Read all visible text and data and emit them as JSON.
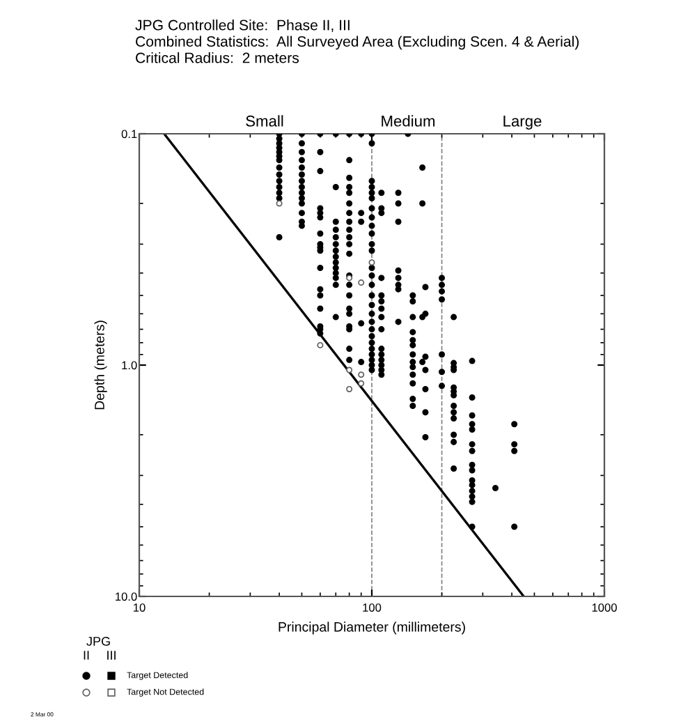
{
  "chart_data": {
    "type": "scatter",
    "title": "JPG Controlled Site:  Phase II, III\nCombined Statistics:  All Surveyed Area (Excluding Scen. 4 & Aerial)\nCritical Radius:  2 meters",
    "xlabel": "Principal Diameter (millimeters)",
    "ylabel": "Depth (meters)",
    "legend_title": "JPG",
    "annotations": [
      "II",
      "III",
      "2 Mar 00",
      "Small",
      "Medium",
      "Large"
    ],
    "log": "xy",
    "xlim": [
      10,
      1000
    ],
    "xticks": [
      10,
      100,
      1000
    ],
    "ylim": [
      10,
      0.1
    ],
    "yticks": [
      0.1,
      {
        "value": 1,
        "label": "1.0"
      },
      {
        "value": 10,
        "label": "10.0"
      }
    ],
    "grid": false,
    "legend": "bottom left",
    "marker": "circle",
    "ref_lines": [
      {
        "axis": "x",
        "value": 100,
        "color": "#808080",
        "line_style": "dashed"
      },
      {
        "axis": "x",
        "value": 200,
        "color": "#808080",
        "line_style": "dashed"
      }
    ],
    "series": [
      {
        "name": "Target Detected",
        "color": "#000000",
        "x": [
          40,
          40,
          40,
          40,
          40,
          40,
          40,
          40,
          40,
          40,
          40,
          40,
          40,
          40,
          50,
          50,
          50,
          50,
          50,
          50,
          50,
          50,
          50,
          50,
          50,
          50,
          50,
          50,
          60,
          60,
          60,
          60,
          60,
          60,
          60,
          60,
          60,
          60,
          60,
          60,
          60,
          60,
          60,
          60,
          60,
          70,
          70,
          70,
          70,
          70,
          70,
          70,
          70,
          70,
          70,
          70,
          70,
          70,
          70,
          80,
          80,
          80,
          80,
          80,
          80,
          80,
          80,
          80,
          80,
          80,
          80,
          80,
          80,
          80,
          80,
          80,
          80,
          80,
          80,
          80,
          90,
          90,
          90,
          90,
          90,
          100,
          100,
          100,
          100,
          100,
          100,
          100,
          100,
          100,
          100,
          100,
          100,
          100,
          100,
          100,
          100,
          100,
          100,
          100,
          100,
          100,
          100,
          100,
          100,
          100,
          100,
          100,
          110,
          110,
          110,
          110,
          110,
          110,
          110,
          110,
          110,
          110,
          110,
          110,
          110,
          110,
          110,
          130,
          130,
          130,
          130,
          130,
          130,
          130,
          130,
          143,
          150,
          150,
          150,
          150,
          150,
          150,
          150,
          150,
          150,
          150,
          150,
          150,
          150,
          165,
          165,
          165,
          165,
          170,
          170,
          170,
          170,
          170,
          170,
          170,
          200,
          200,
          200,
          200,
          200,
          200,
          200,
          225,
          225,
          225,
          225,
          225,
          225,
          225,
          225,
          225,
          225,
          225,
          225,
          225,
          270,
          270,
          270,
          270,
          270,
          270,
          270,
          270,
          270,
          270,
          270,
          270,
          270,
          270,
          270,
          340,
          410,
          410,
          410,
          410
        ],
        "values": [
          0.1,
          0.105,
          0.11,
          0.115,
          0.12,
          0.125,
          0.13,
          0.14,
          0.15,
          0.16,
          0.17,
          0.18,
          0.19,
          0.28,
          0.1,
          0.11,
          0.12,
          0.13,
          0.14,
          0.15,
          0.16,
          0.17,
          0.18,
          0.19,
          0.2,
          0.22,
          0.24,
          0.25,
          0.1,
          0.12,
          0.145,
          0.21,
          0.22,
          0.23,
          0.27,
          0.3,
          0.31,
          0.32,
          0.38,
          0.47,
          0.5,
          0.57,
          0.68,
          0.7,
          0.73,
          0.1,
          0.17,
          0.24,
          0.26,
          0.28,
          0.3,
          0.32,
          0.34,
          0.36,
          0.38,
          0.4,
          0.42,
          0.45,
          0.62,
          0.1,
          0.13,
          0.155,
          0.17,
          0.18,
          0.2,
          0.22,
          0.24,
          0.26,
          0.28,
          0.3,
          0.33,
          0.41,
          0.45,
          0.5,
          0.57,
          0.6,
          0.68,
          0.7,
          0.85,
          0.95,
          0.1,
          0.22,
          0.24,
          0.66,
          0.97,
          0.1,
          0.11,
          0.16,
          0.17,
          0.18,
          0.19,
          0.21,
          0.23,
          0.25,
          0.27,
          0.3,
          0.32,
          0.38,
          0.41,
          0.45,
          0.5,
          0.55,
          0.6,
          0.65,
          0.7,
          0.75,
          0.8,
          0.85,
          0.9,
          0.95,
          1.0,
          1.05,
          0.18,
          0.21,
          0.22,
          0.42,
          0.5,
          0.53,
          0.57,
          0.62,
          0.7,
          0.85,
          0.9,
          0.95,
          1.0,
          1.05,
          1.1,
          0.18,
          0.2,
          0.24,
          0.39,
          0.42,
          0.45,
          0.47,
          0.65,
          0.1,
          0.5,
          0.53,
          0.62,
          0.72,
          0.78,
          0.82,
          0.9,
          0.97,
          1.02,
          1.1,
          1.2,
          1.4,
          1.5,
          0.14,
          0.2,
          0.62,
          0.97,
          0.46,
          0.6,
          0.92,
          1.05,
          1.27,
          1.6,
          2.05,
          0.42,
          0.45,
          0.48,
          0.52,
          0.9,
          1.07,
          1.23,
          0.62,
          0.98,
          1.02,
          1.05,
          1.25,
          1.3,
          1.35,
          1.5,
          1.6,
          1.7,
          2.0,
          2.15,
          2.8,
          0.96,
          1.38,
          1.65,
          1.8,
          1.9,
          2.2,
          2.35,
          2.7,
          2.85,
          3.15,
          3.3,
          3.5,
          3.7,
          3.9,
          5.0,
          3.4,
          1.8,
          2.2,
          2.35,
          5.0
        ]
      },
      {
        "name": "Target Not Detected",
        "color": "#606060",
        "x": [
          40,
          60,
          80,
          80,
          80,
          90,
          90,
          90,
          100
        ],
        "values": [
          0.2,
          0.82,
          0.42,
          1.05,
          1.27,
          0.44,
          1.1,
          1.2,
          0.36
        ]
      },
      {
        "type": "line",
        "color": "#000000",
        "marker": "none",
        "line_style": "solid",
        "x": [
          12.8,
          450
        ],
        "values": [
          0.1,
          10
        ]
      }
    ]
  }
}
